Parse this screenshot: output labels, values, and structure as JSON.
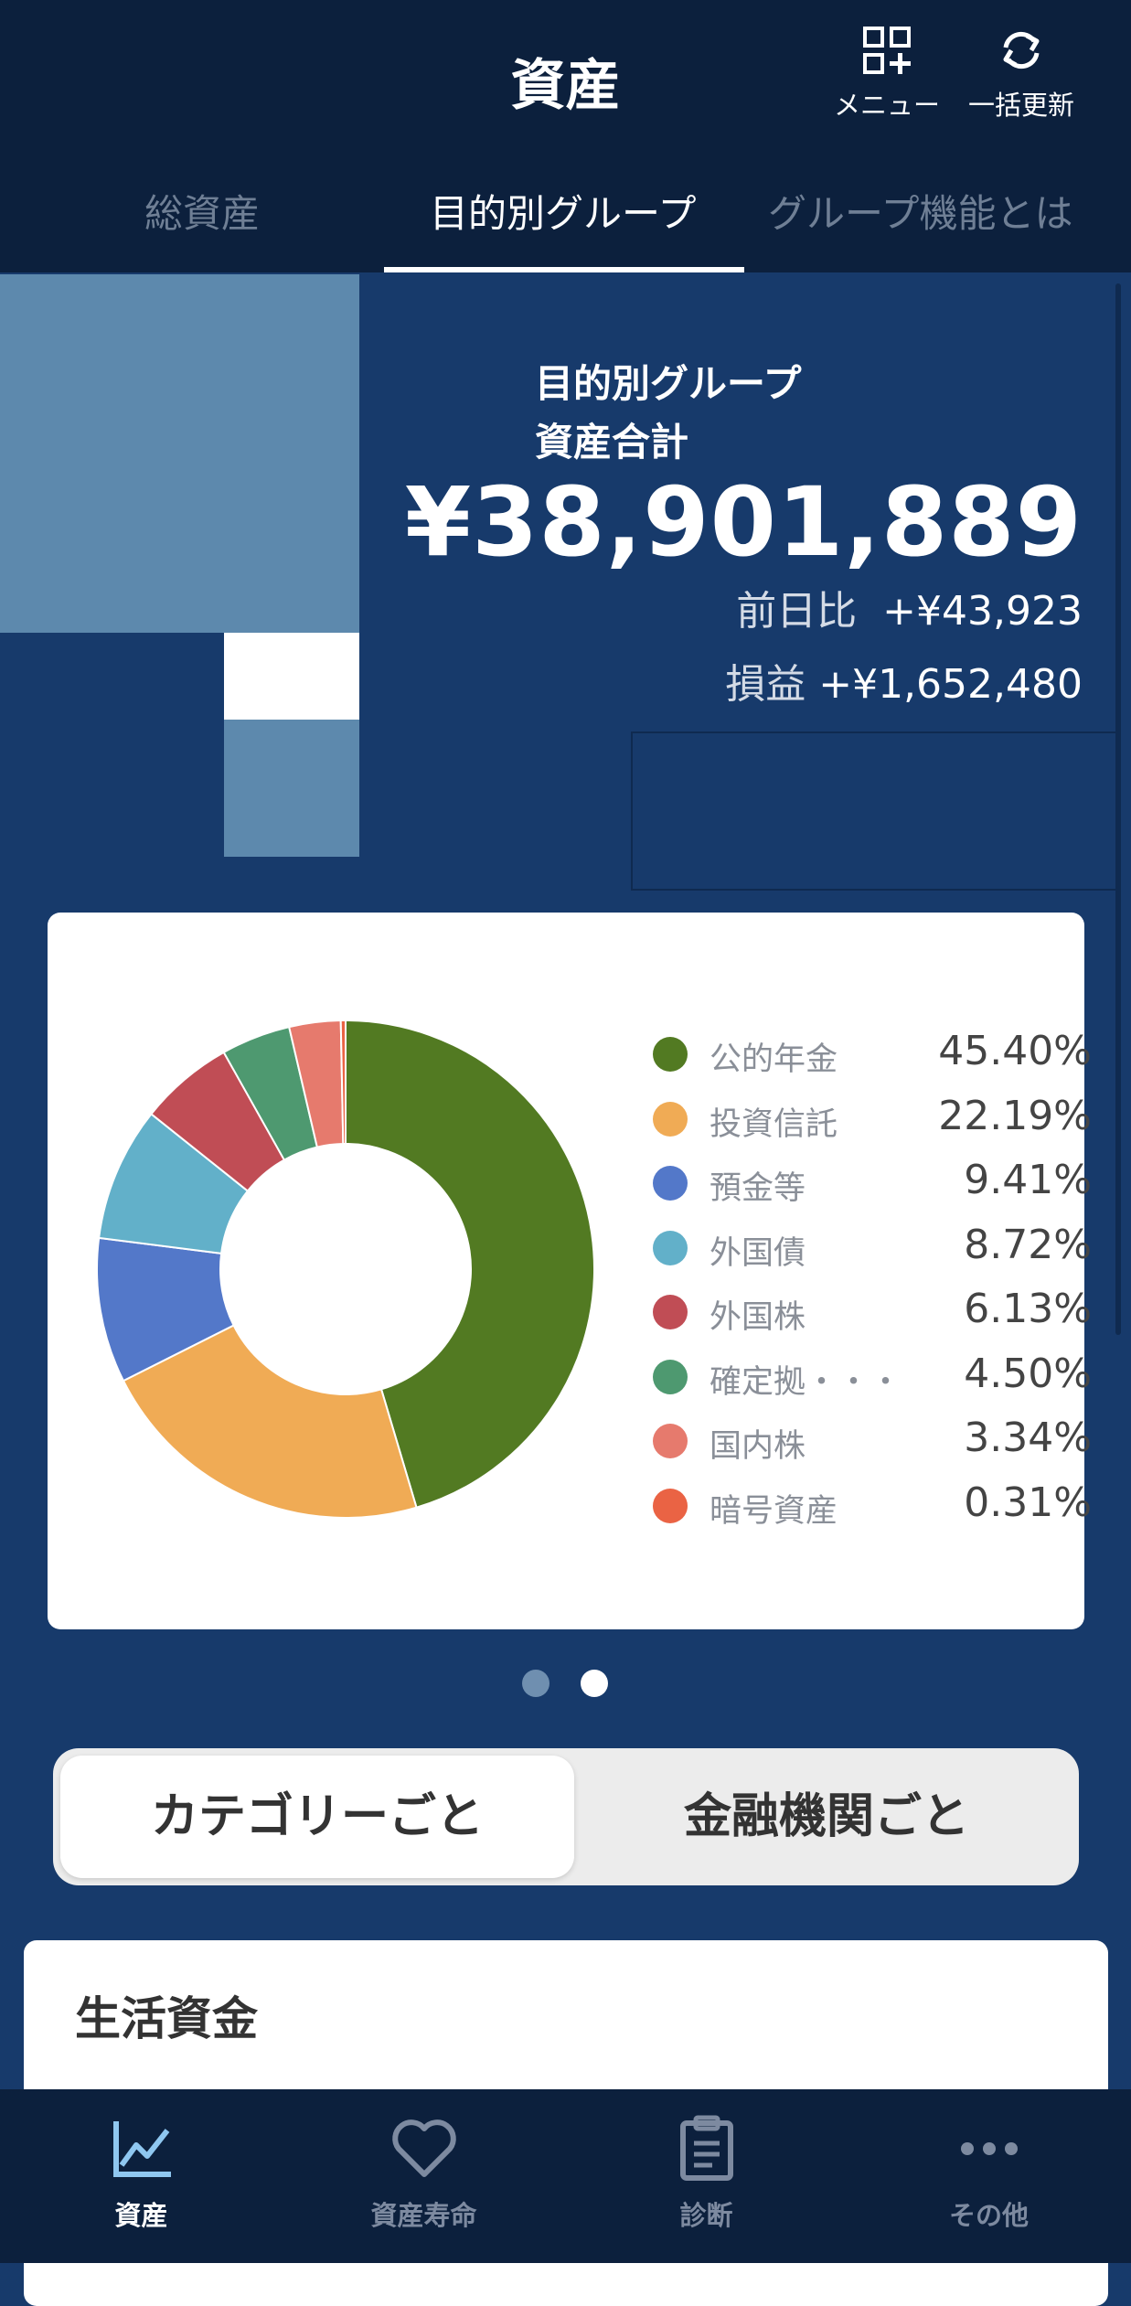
{
  "header": {
    "title": "資産",
    "menu_label": "メニュー",
    "refresh_label": "一括更新"
  },
  "tabs": [
    {
      "label": "総資産",
      "active": false
    },
    {
      "label": "目的別グループ",
      "active": true
    },
    {
      "label": "グループ機能とは",
      "active": false
    }
  ],
  "summary": {
    "label_line1": "目的別グループ",
    "label_line2": "資産合計",
    "total": "¥38,901,889",
    "day_change_label": "前日比",
    "day_change_value": "+¥43,923",
    "profit_label": "損益",
    "profit_value": "+¥1,652,480"
  },
  "chart_data": {
    "type": "pie",
    "title": "",
    "categories": [
      "公的年金",
      "投資信託",
      "預金等",
      "外国債",
      "外国株",
      "確定拠・・・",
      "国内株",
      "暗号資産"
    ],
    "values": [
      45.4,
      22.19,
      9.41,
      8.72,
      6.13,
      4.5,
      3.34,
      0.31
    ],
    "labels": [
      "45.40%",
      "22.19%",
      "9.41%",
      "8.72%",
      "6.13%",
      "4.50%",
      "3.34%",
      "0.31%"
    ],
    "colors": [
      "#527a22",
      "#f0ab55",
      "#5378c9",
      "#62b0c9",
      "#c04d55",
      "#4e9970",
      "#e67a6d",
      "#ea6344"
    ],
    "legend": "right",
    "donut": true
  },
  "pager": {
    "pages": 2,
    "current": 2
  },
  "segment": {
    "left_label": "カテゴリーごと",
    "right_label": "金融機関ごと",
    "selected": "left"
  },
  "group": {
    "title": "生活資金"
  },
  "bottom_nav": [
    {
      "label": "資産",
      "icon": "chart-line-icon",
      "active": true
    },
    {
      "label": "資産寿命",
      "icon": "heart-icon",
      "active": false
    },
    {
      "label": "診断",
      "icon": "clipboard-icon",
      "active": false
    },
    {
      "label": "その他",
      "icon": "more-icon",
      "active": false
    }
  ]
}
